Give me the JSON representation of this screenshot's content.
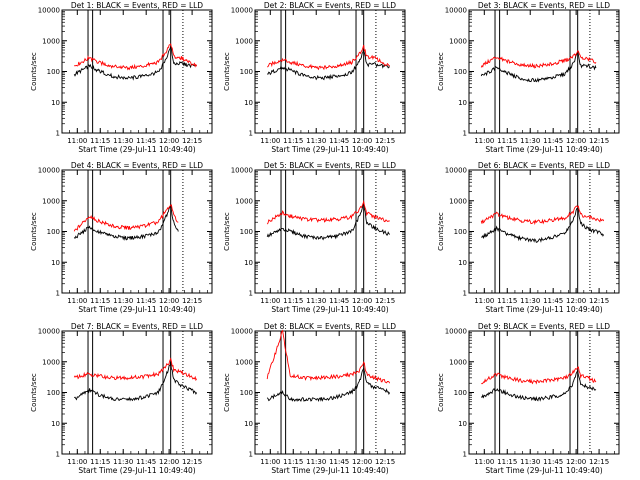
{
  "figure": {
    "ylabel": "Counts/sec",
    "xlabel": "Start Time (29-Jul-11 10:49:40)",
    "y_tick_labels": [
      "1",
      "10",
      "100",
      "1000",
      "10000"
    ],
    "x_tick_labels": [
      "11:00",
      "11:15",
      "11:30",
      "11:45",
      "12:00",
      "12:15"
    ],
    "colors": {
      "events": "#000000",
      "lld": "#ff0000",
      "axes": "#000000",
      "background": "#ffffff"
    }
  },
  "chart_data": [
    {
      "type": "line",
      "title": "Det 1: BLACK = Events, RED = LLD",
      "xlabel": "Start Time (29-Jul-11 10:49:40)",
      "ylabel": "Counts/sec",
      "y_scale": "log",
      "ylim": [
        1,
        10000
      ],
      "xlim": [
        "10:50",
        "12:28"
      ],
      "x": [
        "10:58",
        "11:08",
        "11:13",
        "11:23",
        "11:33",
        "11:43",
        "11:53",
        "11:58",
        "12:01",
        "12:03",
        "12:08",
        "12:13",
        "12:18"
      ],
      "series": [
        {
          "name": "Events",
          "values": [
            80,
            150,
            110,
            70,
            60,
            70,
            95,
            250,
            700,
            180,
            180,
            160,
            150
          ]
        },
        {
          "name": "LLD",
          "values": [
            150,
            280,
            200,
            150,
            130,
            150,
            200,
            450,
            900,
            300,
            280,
            200,
            150
          ]
        }
      ],
      "vertical_lines": [
        "11:07",
        "11:10",
        "11:56",
        "12:01"
      ]
    },
    {
      "type": "line",
      "title": "Det 2: BLACK = Events, RED = LLD",
      "xlabel": "Start Time (29-Jul-11 10:49:40)",
      "ylabel": "Counts/sec",
      "y_scale": "log",
      "ylim": [
        1,
        10000
      ],
      "xlim": [
        "10:50",
        "12:28"
      ],
      "x": [
        "10:58",
        "11:08",
        "11:13",
        "11:23",
        "11:33",
        "11:43",
        "11:53",
        "11:58",
        "12:01",
        "12:03",
        "12:08",
        "12:13",
        "12:18"
      ],
      "series": [
        {
          "name": "Events",
          "values": [
            80,
            140,
            110,
            70,
            60,
            70,
            90,
            200,
            500,
            170,
            170,
            150,
            140
          ]
        },
        {
          "name": "LLD",
          "values": [
            150,
            250,
            200,
            150,
            130,
            150,
            200,
            350,
            650,
            300,
            280,
            200,
            150
          ]
        }
      ],
      "vertical_lines": [
        "11:07",
        "11:10",
        "11:56",
        "12:01"
      ]
    },
    {
      "type": "line",
      "title": "Det 3: BLACK = Events, RED = LLD",
      "xlabel": "Start Time (29-Jul-11 10:49:40)",
      "ylabel": "Counts/sec",
      "y_scale": "log",
      "ylim": [
        1,
        10000
      ],
      "xlim": [
        "10:50",
        "12:28"
      ],
      "x": [
        "10:58",
        "11:08",
        "11:13",
        "11:23",
        "11:33",
        "11:43",
        "11:53",
        "11:58",
        "12:01",
        "12:03",
        "12:08",
        "12:13"
      ],
      "series": [
        {
          "name": "Events",
          "values": [
            70,
            130,
            100,
            60,
            50,
            60,
            85,
            180,
            400,
            150,
            150,
            130
          ]
        },
        {
          "name": "LLD",
          "values": [
            150,
            300,
            230,
            170,
            150,
            170,
            230,
            300,
            450,
            300,
            250,
            200
          ]
        }
      ],
      "vertical_lines": [
        "11:07",
        "11:10",
        "11:56",
        "12:01"
      ]
    },
    {
      "type": "line",
      "title": "Det 4: BLACK = Events, RED = LLD",
      "xlabel": "Start Time (29-Jul-11 10:49:40)",
      "ylabel": "Counts/sec",
      "y_scale": "log",
      "ylim": [
        1,
        10000
      ],
      "xlim": [
        "10:50",
        "12:28"
      ],
      "x": [
        "10:58",
        "11:08",
        "11:13",
        "11:23",
        "11:33",
        "11:43",
        "11:53",
        "11:58",
        "12:01",
        "12:03",
        "12:06"
      ],
      "series": [
        {
          "name": "Events",
          "values": [
            60,
            140,
            100,
            70,
            60,
            70,
            90,
            300,
            650,
            200,
            100
          ]
        },
        {
          "name": "LLD",
          "values": [
            100,
            320,
            230,
            150,
            130,
            150,
            200,
            500,
            800,
            350,
            200
          ]
        }
      ],
      "vertical_lines": [
        "11:07",
        "11:10",
        "11:56",
        "12:01"
      ]
    },
    {
      "type": "line",
      "title": "Det 5: BLACK = Events, RED = LLD",
      "xlabel": "Start Time (29-Jul-11 10:49:40)",
      "ylabel": "Counts/sec",
      "y_scale": "log",
      "ylim": [
        1,
        10000
      ],
      "xlim": [
        "10:50",
        "12:28"
      ],
      "x": [
        "10:58",
        "11:08",
        "11:13",
        "11:23",
        "11:33",
        "11:43",
        "11:53",
        "11:58",
        "12:01",
        "12:03",
        "12:08",
        "12:13",
        "12:18"
      ],
      "series": [
        {
          "name": "Events",
          "values": [
            70,
            120,
            100,
            70,
            60,
            70,
            100,
            300,
            800,
            200,
            130,
            100,
            80
          ]
        },
        {
          "name": "LLD",
          "values": [
            200,
            400,
            320,
            250,
            230,
            250,
            300,
            500,
            950,
            400,
            300,
            250,
            220
          ]
        }
      ],
      "vertical_lines": [
        "11:07",
        "11:10",
        "11:56",
        "12:01"
      ]
    },
    {
      "type": "line",
      "title": "Det 6: BLACK = Events, RED = LLD",
      "xlabel": "Start Time (29-Jul-11 10:49:40)",
      "ylabel": "Counts/sec",
      "y_scale": "log",
      "ylim": [
        1,
        10000
      ],
      "xlim": [
        "10:50",
        "12:28"
      ],
      "x": [
        "10:58",
        "11:08",
        "11:13",
        "11:23",
        "11:33",
        "11:43",
        "11:53",
        "11:58",
        "12:01",
        "12:03",
        "12:08",
        "12:13",
        "12:18"
      ],
      "series": [
        {
          "name": "Events",
          "values": [
            60,
            130,
            90,
            60,
            50,
            60,
            90,
            250,
            600,
            180,
            120,
            100,
            80
          ]
        },
        {
          "name": "LLD",
          "values": [
            200,
            380,
            300,
            230,
            200,
            230,
            280,
            450,
            700,
            350,
            300,
            250,
            220
          ]
        }
      ],
      "vertical_lines": [
        "11:07",
        "11:10",
        "11:56",
        "12:01"
      ]
    },
    {
      "type": "line",
      "title": "Det 7: BLACK = Events, RED = LLD",
      "xlabel": "Start Time (29-Jul-11 10:49:40)",
      "ylabel": "Counts/sec",
      "y_scale": "log",
      "ylim": [
        1,
        10000
      ],
      "xlim": [
        "10:50",
        "12:28"
      ],
      "x": [
        "10:58",
        "11:08",
        "11:13",
        "11:23",
        "11:33",
        "11:43",
        "11:53",
        "11:58",
        "12:01",
        "12:03",
        "12:08",
        "12:13",
        "12:18"
      ],
      "series": [
        {
          "name": "Events",
          "values": [
            60,
            120,
            90,
            60,
            60,
            70,
            100,
            350,
            900,
            250,
            170,
            130,
            100
          ]
        },
        {
          "name": "LLD",
          "values": [
            300,
            400,
            350,
            300,
            300,
            330,
            400,
            700,
            1200,
            550,
            450,
            350,
            280
          ]
        }
      ],
      "vertical_lines": [
        "11:07",
        "11:10",
        "11:56",
        "12:01"
      ]
    },
    {
      "type": "line",
      "title": "Det 8: BLACK = Events, RED = LLD",
      "xlabel": "Start Time (29-Jul-11 10:49:40)",
      "ylabel": "Counts/sec",
      "y_scale": "log",
      "ylim": [
        1,
        10000
      ],
      "xlim": [
        "10:50",
        "12:28"
      ],
      "x": [
        "10:58",
        "11:08",
        "11:13",
        "11:23",
        "11:33",
        "11:43",
        "11:53",
        "11:58",
        "12:01",
        "12:03",
        "12:08",
        "12:13",
        "12:18"
      ],
      "series": [
        {
          "name": "Events",
          "values": [
            60,
            100,
            60,
            60,
            60,
            70,
            100,
            200,
            600,
            200,
            150,
            130,
            100
          ]
        },
        {
          "name": "LLD",
          "values": [
            300,
            10000,
            350,
            300,
            300,
            330,
            380,
            500,
            1000,
            400,
            300,
            250,
            200
          ]
        }
      ],
      "vertical_lines": [
        "11:07",
        "11:10",
        "11:56",
        "12:01"
      ]
    },
    {
      "type": "line",
      "title": "Det 9: BLACK = Events, RED = LLD",
      "xlabel": "Start Time (29-Jul-11 10:49:40)",
      "ylabel": "Counts/sec",
      "y_scale": "log",
      "ylim": [
        1,
        10000
      ],
      "xlim": [
        "10:50",
        "12:28"
      ],
      "x": [
        "10:58",
        "11:08",
        "11:13",
        "11:23",
        "11:33",
        "11:43",
        "11:53",
        "11:58",
        "12:01",
        "12:03",
        "12:08",
        "12:13"
      ],
      "series": [
        {
          "name": "Events",
          "values": [
            70,
            130,
            100,
            70,
            60,
            70,
            90,
            200,
            500,
            180,
            150,
            120
          ]
        },
        {
          "name": "LLD",
          "values": [
            200,
            400,
            320,
            250,
            220,
            250,
            300,
            450,
            700,
            350,
            300,
            220
          ]
        }
      ],
      "vertical_lines": [
        "11:07",
        "11:10",
        "11:56",
        "12:01"
      ]
    }
  ]
}
